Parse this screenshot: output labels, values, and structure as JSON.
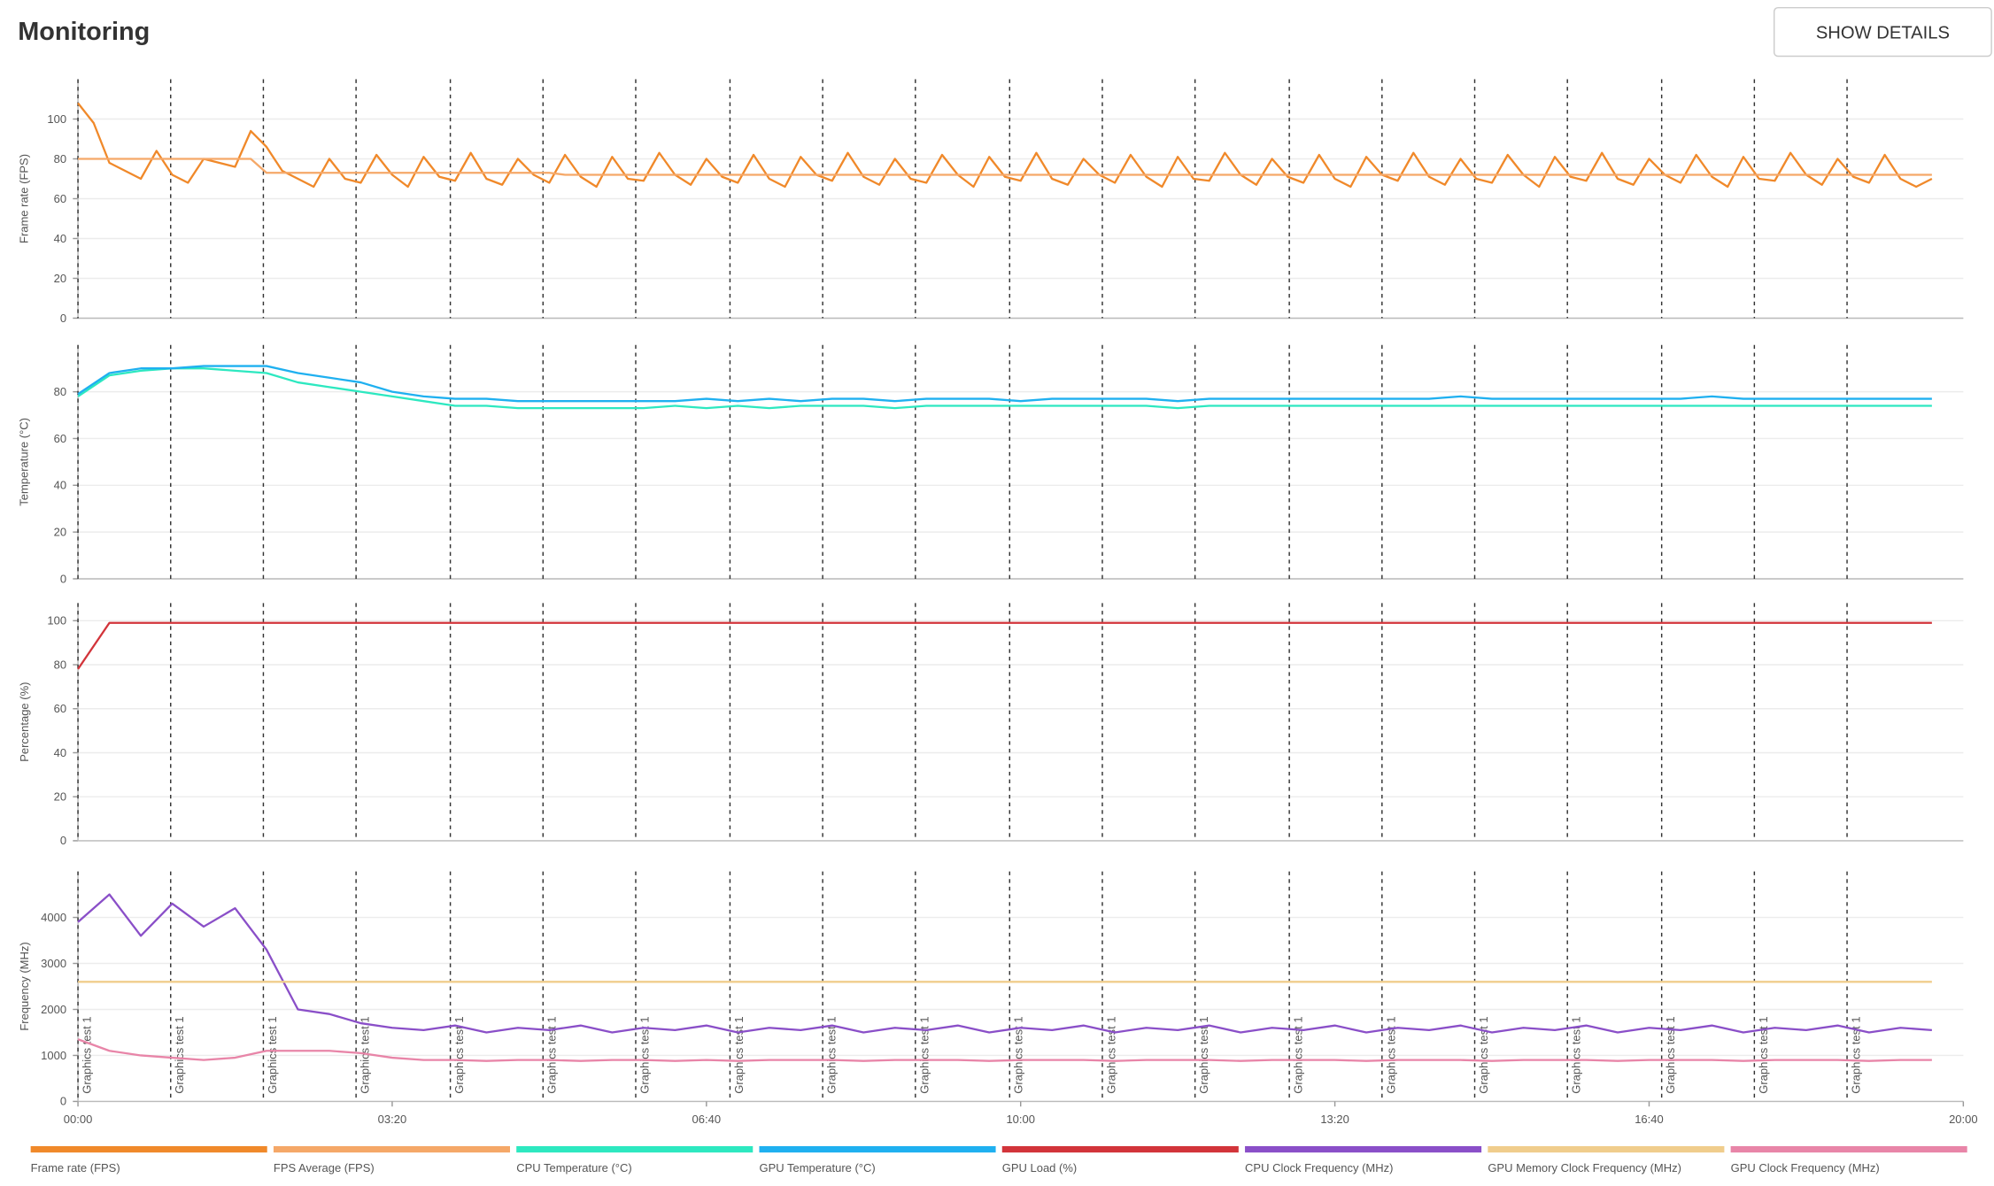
{
  "header": {
    "title": "Monitoring",
    "button": "SHOW DETAILS"
  },
  "chart_data": [
    {
      "type": "line",
      "ylabel": "Frame rate (FPS)",
      "xlim": [
        0,
        1200
      ],
      "ylim": [
        0,
        120
      ],
      "yticks": [
        0,
        20,
        40,
        60,
        80,
        100
      ],
      "grid": true,
      "x": [
        0,
        10,
        20,
        30,
        40,
        50,
        60,
        70,
        80,
        90,
        100,
        110,
        120,
        130,
        140,
        150,
        160,
        170,
        180,
        190,
        200,
        210,
        220,
        230,
        240,
        250,
        260,
        270,
        280,
        290,
        300,
        310,
        320,
        330,
        340,
        350,
        360,
        370,
        380,
        390,
        400,
        410,
        420,
        430,
        440,
        450,
        460,
        470,
        480,
        490,
        500,
        510,
        520,
        530,
        540,
        550,
        560,
        570,
        580,
        590,
        600,
        610,
        620,
        630,
        640,
        650,
        660,
        670,
        680,
        690,
        700,
        710,
        720,
        730,
        740,
        750,
        760,
        770,
        780,
        790,
        800,
        810,
        820,
        830,
        840,
        850,
        860,
        870,
        880,
        890,
        900,
        910,
        920,
        930,
        940,
        950,
        960,
        970,
        980,
        990,
        1000,
        1010,
        1020,
        1030,
        1040,
        1050,
        1060,
        1070,
        1080,
        1090,
        1100,
        1110,
        1120,
        1130,
        1140,
        1150,
        1160,
        1170,
        1180
      ],
      "series": [
        {
          "name": "Frame rate (FPS)",
          "color": "#f0892a",
          "values": [
            108,
            98,
            78,
            74,
            70,
            84,
            72,
            68,
            80,
            78,
            76,
            94,
            86,
            74,
            70,
            66,
            80,
            70,
            68,
            82,
            72,
            66,
            81,
            71,
            69,
            83,
            70,
            67,
            80,
            72,
            68,
            82,
            71,
            66,
            81,
            70,
            69,
            83,
            72,
            67,
            80,
            71,
            68,
            82,
            70,
            66,
            81,
            72,
            69,
            83,
            71,
            67,
            80,
            70,
            68,
            82,
            72,
            66,
            81,
            71,
            69,
            83,
            70,
            67,
            80,
            72,
            68,
            82,
            71,
            66,
            81,
            70,
            69,
            83,
            72,
            67,
            80,
            71,
            68,
            82,
            70,
            66,
            81,
            72,
            69,
            83,
            71,
            67,
            80,
            70,
            68,
            82,
            72,
            66,
            81,
            71,
            69,
            83,
            70,
            67,
            80,
            72,
            68,
            82,
            71,
            66,
            81,
            70,
            69,
            83,
            72,
            67,
            80,
            71,
            68,
            82,
            70,
            66,
            70
          ]
        },
        {
          "name": "FPS Average (FPS)",
          "color": "#f5a868",
          "values": [
            80,
            80,
            80,
            80,
            80,
            80,
            80,
            80,
            80,
            80,
            80,
            80,
            73,
            73,
            73,
            73,
            73,
            73,
            73,
            73,
            73,
            73,
            73,
            73,
            73,
            73,
            73,
            73,
            73,
            73,
            73,
            72,
            72,
            72,
            72,
            72,
            72,
            72,
            72,
            72,
            72,
            72,
            72,
            72,
            72,
            72,
            72,
            72,
            72,
            72,
            72,
            72,
            72,
            72,
            72,
            72,
            72,
            72,
            72,
            72,
            72,
            72,
            72,
            72,
            72,
            72,
            72,
            72,
            72,
            72,
            72,
            72,
            72,
            72,
            72,
            72,
            72,
            72,
            72,
            72,
            72,
            72,
            72,
            72,
            72,
            72,
            72,
            72,
            72,
            72,
            72,
            72,
            72,
            72,
            72,
            72,
            72,
            72,
            72,
            72,
            72,
            72,
            72,
            72,
            72,
            72,
            72,
            72,
            72,
            72,
            72,
            72,
            72,
            72,
            72,
            72,
            72,
            72,
            72
          ]
        }
      ]
    },
    {
      "type": "line",
      "ylabel": "Temperature (°C)",
      "xlim": [
        0,
        1200
      ],
      "ylim": [
        0,
        100
      ],
      "yticks": [
        0,
        20,
        40,
        60,
        80
      ],
      "grid": true,
      "x": [
        0,
        20,
        40,
        60,
        80,
        100,
        120,
        140,
        160,
        180,
        200,
        220,
        240,
        260,
        280,
        300,
        320,
        340,
        360,
        380,
        400,
        420,
        440,
        460,
        480,
        500,
        520,
        540,
        560,
        580,
        600,
        620,
        640,
        660,
        680,
        700,
        720,
        740,
        760,
        780,
        800,
        820,
        840,
        860,
        880,
        900,
        920,
        940,
        960,
        980,
        1000,
        1020,
        1040,
        1060,
        1080,
        1100,
        1120,
        1140,
        1160,
        1180
      ],
      "series": [
        {
          "name": "CPU Temperature (°C)",
          "color": "#2de8c0",
          "values": [
            78,
            87,
            89,
            90,
            90,
            89,
            88,
            84,
            82,
            80,
            78,
            76,
            74,
            74,
            73,
            73,
            73,
            73,
            73,
            74,
            73,
            74,
            73,
            74,
            74,
            74,
            73,
            74,
            74,
            74,
            74,
            74,
            74,
            74,
            74,
            73,
            74,
            74,
            74,
            74,
            74,
            74,
            74,
            74,
            74,
            74,
            74,
            74,
            74,
            74,
            74,
            74,
            74,
            74,
            74,
            74,
            74,
            74,
            74,
            74
          ]
        },
        {
          "name": "GPU Temperature (°C)",
          "color": "#1fb0f0",
          "values": [
            79,
            88,
            90,
            90,
            91,
            91,
            91,
            88,
            86,
            84,
            80,
            78,
            77,
            77,
            76,
            76,
            76,
            76,
            76,
            76,
            77,
            76,
            77,
            76,
            77,
            77,
            76,
            77,
            77,
            77,
            76,
            77,
            77,
            77,
            77,
            76,
            77,
            77,
            77,
            77,
            77,
            77,
            77,
            77,
            78,
            77,
            77,
            77,
            77,
            77,
            77,
            77,
            78,
            77,
            77,
            77,
            77,
            77,
            77,
            77
          ]
        }
      ]
    },
    {
      "type": "line",
      "ylabel": "Percentage (%)",
      "xlim": [
        0,
        1200
      ],
      "ylim": [
        0,
        108
      ],
      "yticks": [
        0,
        20,
        40,
        60,
        80,
        100
      ],
      "grid": true,
      "x": [
        0,
        20,
        40,
        60,
        80,
        100,
        120,
        140,
        160,
        180,
        200,
        220,
        240,
        260,
        280,
        300,
        320,
        340,
        360,
        380,
        400,
        420,
        440,
        460,
        480,
        500,
        520,
        540,
        560,
        580,
        600,
        620,
        640,
        660,
        680,
        700,
        720,
        740,
        760,
        780,
        800,
        820,
        840,
        860,
        880,
        900,
        920,
        940,
        960,
        980,
        1000,
        1020,
        1040,
        1060,
        1080,
        1100,
        1120,
        1140,
        1160,
        1180
      ],
      "series": [
        {
          "name": "GPU Load (%)",
          "color": "#d2343a",
          "values": [
            78,
            99,
            99,
            99,
            99,
            99,
            99,
            99,
            99,
            99,
            99,
            99,
            99,
            99,
            99,
            99,
            99,
            99,
            99,
            99,
            99,
            99,
            99,
            99,
            99,
            99,
            99,
            99,
            99,
            99,
            99,
            99,
            99,
            99,
            99,
            99,
            99,
            99,
            99,
            99,
            99,
            99,
            99,
            99,
            99,
            99,
            99,
            99,
            99,
            99,
            99,
            99,
            99,
            99,
            99,
            99,
            99,
            99,
            99,
            99
          ]
        }
      ]
    },
    {
      "type": "line",
      "ylabel": "Frequency (MHz)",
      "xlim": [
        0,
        1200
      ],
      "ylim": [
        0,
        5000
      ],
      "yticks": [
        0,
        1000,
        2000,
        3000,
        4000
      ],
      "grid": true,
      "xticks": [
        {
          "value": 0,
          "label": "00:00"
        },
        {
          "value": 200,
          "label": "03:20"
        },
        {
          "value": 400,
          "label": "06:40"
        },
        {
          "value": 600,
          "label": "10:00"
        },
        {
          "value": 800,
          "label": "13:20"
        },
        {
          "value": 1000,
          "label": "16:40"
        },
        {
          "value": 1200,
          "label": "20:00"
        }
      ],
      "annotations": [
        {
          "x": 0,
          "text": "Graphics test 1"
        },
        {
          "x": 59,
          "text": "Graphics test 1"
        },
        {
          "x": 118,
          "text": "Graphics test 1"
        },
        {
          "x": 177,
          "text": "Graphics test 1"
        },
        {
          "x": 237,
          "text": "Graphics test 1"
        },
        {
          "x": 296,
          "text": "Graphics test 1"
        },
        {
          "x": 355,
          "text": "Graphics test 1"
        },
        {
          "x": 415,
          "text": "Graphics test 1"
        },
        {
          "x": 474,
          "text": "Graphics test 1"
        },
        {
          "x": 533,
          "text": "Graphics test 1"
        },
        {
          "x": 593,
          "text": "Graphics test 1"
        },
        {
          "x": 652,
          "text": "Graphics test 1"
        },
        {
          "x": 711,
          "text": "Graphics test 1"
        },
        {
          "x": 771,
          "text": "Graphics test 1"
        },
        {
          "x": 830,
          "text": "Graphics test 1"
        },
        {
          "x": 889,
          "text": "Graphics test 1"
        },
        {
          "x": 948,
          "text": "Graphics test 1"
        },
        {
          "x": 1008,
          "text": "Graphics test 1"
        },
        {
          "x": 1067,
          "text": "Graphics test 1"
        },
        {
          "x": 1126,
          "text": "Graphics test 1"
        }
      ],
      "x": [
        0,
        20,
        40,
        60,
        80,
        100,
        120,
        140,
        160,
        180,
        200,
        220,
        240,
        260,
        280,
        300,
        320,
        340,
        360,
        380,
        400,
        420,
        440,
        460,
        480,
        500,
        520,
        540,
        560,
        580,
        600,
        620,
        640,
        660,
        680,
        700,
        720,
        740,
        760,
        780,
        800,
        820,
        840,
        860,
        880,
        900,
        920,
        940,
        960,
        980,
        1000,
        1020,
        1040,
        1060,
        1080,
        1100,
        1120,
        1140,
        1160,
        1180
      ],
      "series": [
        {
          "name": "CPU Clock Frequency (MHz)",
          "color": "#8a4fc8",
          "values": [
            3900,
            4500,
            3600,
            4300,
            3800,
            4200,
            3300,
            2000,
            1900,
            1700,
            1600,
            1550,
            1650,
            1500,
            1600,
            1550,
            1650,
            1500,
            1600,
            1550,
            1650,
            1500,
            1600,
            1550,
            1650,
            1500,
            1600,
            1550,
            1650,
            1500,
            1600,
            1550,
            1650,
            1500,
            1600,
            1550,
            1650,
            1500,
            1600,
            1550,
            1650,
            1500,
            1600,
            1550,
            1650,
            1500,
            1600,
            1550,
            1650,
            1500,
            1600,
            1550,
            1650,
            1500,
            1600,
            1550,
            1650,
            1500,
            1600,
            1550
          ]
        },
        {
          "name": "GPU Memory Clock Frequency (MHz)",
          "color": "#f0cd8c",
          "values": [
            2600,
            2600,
            2600,
            2600,
            2600,
            2600,
            2600,
            2600,
            2600,
            2600,
            2600,
            2600,
            2600,
            2600,
            2600,
            2600,
            2600,
            2600,
            2600,
            2600,
            2600,
            2600,
            2600,
            2600,
            2600,
            2600,
            2600,
            2600,
            2600,
            2600,
            2600,
            2600,
            2600,
            2600,
            2600,
            2600,
            2600,
            2600,
            2600,
            2600,
            2600,
            2600,
            2600,
            2600,
            2600,
            2600,
            2600,
            2600,
            2600,
            2600,
            2600,
            2600,
            2600,
            2600,
            2600,
            2600,
            2600,
            2600,
            2600,
            2600
          ]
        },
        {
          "name": "GPU Clock Frequency (MHz)",
          "color": "#e885a8",
          "values": [
            1350,
            1100,
            1000,
            950,
            900,
            950,
            1100,
            1100,
            1100,
            1050,
            950,
            900,
            900,
            880,
            900,
            900,
            880,
            900,
            900,
            880,
            900,
            880,
            900,
            900,
            900,
            880,
            900,
            900,
            900,
            880,
            900,
            900,
            900,
            880,
            900,
            900,
            900,
            880,
            900,
            900,
            900,
            880,
            900,
            900,
            900,
            880,
            900,
            900,
            900,
            880,
            900,
            900,
            900,
            880,
            900,
            900,
            900,
            880,
            900,
            900
          ]
        }
      ]
    }
  ]
}
